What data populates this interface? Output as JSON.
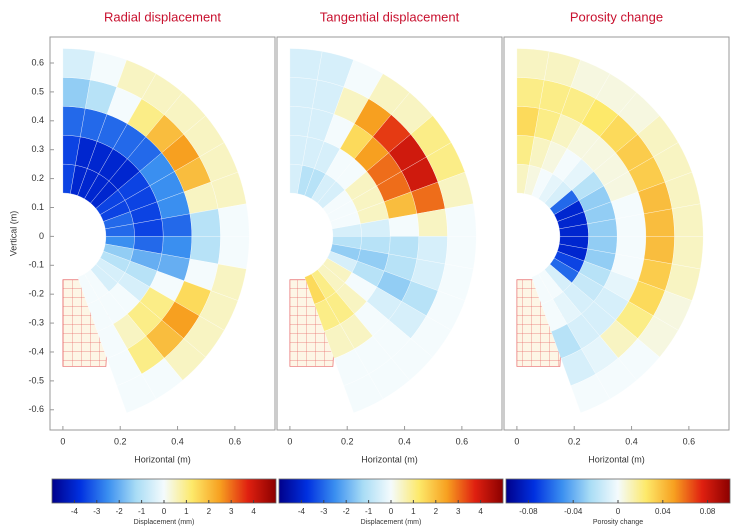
{
  "chart_data": [
    {
      "type": "heatmap",
      "title": "Radial displacement",
      "xlabel": "Horizontal (m)",
      "ylabel": "Vertical (m)",
      "xlim": [
        -0.045,
        0.74
      ],
      "ylim": [
        -0.67,
        0.69
      ],
      "xticks": [
        0,
        0.2,
        0.4,
        0.6
      ],
      "yticks": [
        -0.6,
        -0.5,
        -0.4,
        -0.3,
        -0.2,
        -0.1,
        0,
        0.1,
        0.2,
        0.3,
        0.4,
        0.5,
        0.6
      ],
      "colormap": [
        "#00008b",
        "#0030e0",
        "#3a8ff0",
        "#a8dcf5",
        "#f4fbfd",
        "#fde96a",
        "#f7a020",
        "#e02010",
        "#8b0000"
      ],
      "colorbar": {
        "label": "Displacement (mm)",
        "clim": [
          -5,
          5
        ],
        "ticks": [
          -4,
          -3,
          -2,
          -1,
          0,
          1,
          2,
          3,
          4
        ]
      },
      "values": [
        [
          -3.5,
          -3.5,
          -3,
          -1.5,
          -0.5
        ],
        [
          -4,
          -4,
          -3,
          -1,
          0
        ],
        [
          -4,
          -4,
          -3,
          0,
          0.5
        ],
        [
          -4,
          -4,
          -3,
          1,
          0.5
        ],
        [
          -4,
          -4,
          -3,
          2,
          0.5
        ],
        [
          -3.5,
          -3.5,
          -2.5,
          2.5,
          0.5
        ],
        [
          -3.5,
          -3.5,
          -2.5,
          2,
          0.5
        ],
        [
          -3,
          -3.5,
          -2.5,
          0.5,
          0.5
        ],
        [
          -3,
          -3.5,
          -3,
          -1,
          0
        ],
        [
          -2.5,
          -3,
          -2.5,
          -1,
          0
        ],
        [
          -1.5,
          -2,
          -2,
          0,
          0.5
        ],
        [
          -1,
          -1,
          0,
          1.5,
          0.5
        ],
        [
          -0.5,
          -0.5,
          1,
          2.5,
          0.5
        ],
        [
          -0.5,
          0,
          1,
          2,
          0.5
        ],
        [
          0,
          0,
          0.5,
          1,
          0
        ],
        [
          0,
          0,
          0,
          0,
          0
        ]
      ]
    },
    {
      "type": "heatmap",
      "title": "Tangential displacement",
      "xlabel": "Horizontal (m)",
      "xlim": [
        -0.045,
        0.74
      ],
      "ylim": [
        -0.67,
        0.69
      ],
      "xticks": [
        0,
        0.2,
        0.4,
        0.6
      ],
      "colormap": [
        "#00008b",
        "#0030e0",
        "#3a8ff0",
        "#a8dcf5",
        "#f4fbfd",
        "#fde96a",
        "#f7a020",
        "#e02010",
        "#8b0000"
      ],
      "colorbar": {
        "label": "Displacement (mm)",
        "clim": [
          -5,
          5
        ],
        "ticks": [
          -4,
          -3,
          -2,
          -1,
          0,
          1,
          2,
          3,
          4
        ]
      },
      "values": [
        [
          -0.5,
          -0.5,
          -0.5,
          -0.5,
          -0.5
        ],
        [
          -1,
          -0.5,
          -0.5,
          -0.5,
          -0.5
        ],
        [
          -1,
          -0.5,
          0,
          0.5,
          0
        ],
        [
          -0.5,
          0,
          1.5,
          2.5,
          0.5
        ],
        [
          -0.5,
          0,
          2.5,
          3.5,
          0.5
        ],
        [
          0,
          0.5,
          3,
          4,
          1
        ],
        [
          0,
          0.5,
          3,
          4,
          1
        ],
        [
          0,
          0.5,
          2,
          3,
          0.5
        ],
        [
          -0.5,
          -0.5,
          0,
          0.5,
          0
        ],
        [
          -1,
          -1,
          -1,
          -0.5,
          0
        ],
        [
          -1.5,
          -1.5,
          -1,
          -0.5,
          0
        ],
        [
          -0.5,
          -1,
          -1.5,
          -1,
          0
        ],
        [
          0.5,
          0,
          -0.5,
          -0.5,
          0
        ],
        [
          0.5,
          0.5,
          0,
          0,
          0
        ],
        [
          1,
          1,
          0.5,
          0,
          0
        ],
        [
          1.5,
          1,
          0.5,
          0,
          0
        ]
      ]
    },
    {
      "type": "heatmap",
      "title": "Porosity change",
      "xlabel": "Horizontal (m)",
      "xlim": [
        -0.045,
        0.74
      ],
      "ylim": [
        -0.67,
        0.69
      ],
      "xticks": [
        0,
        0.2,
        0.4,
        0.6
      ],
      "colormap": [
        "#00008b",
        "#0030e0",
        "#3a8ff0",
        "#a8dcf5",
        "#f4fbfd",
        "#fde96a",
        "#f7a020",
        "#e02010",
        "#8b0000"
      ],
      "colorbar": {
        "label": "Porosity change",
        "clim": [
          -0.1,
          0.1
        ],
        "ticks": [
          -0.08,
          -0.04,
          0,
          0.04,
          0.08
        ]
      },
      "values": [
        [
          0.01,
          0.02,
          0.03,
          0.02,
          0.01
        ],
        [
          0.005,
          0.01,
          0.02,
          0.02,
          0.01
        ],
        [
          0,
          0.005,
          0.01,
          0.02,
          0.005
        ],
        [
          -0.005,
          0,
          0.005,
          0.025,
          0.005
        ],
        [
          -0.01,
          -0.005,
          0.005,
          0.03,
          0.005
        ],
        [
          -0.06,
          -0.02,
          0.005,
          0.035,
          0.01
        ],
        [
          -0.08,
          -0.03,
          0.005,
          0.035,
          0.01
        ],
        [
          -0.08,
          -0.03,
          0,
          0.04,
          0.01
        ],
        [
          -0.08,
          -0.03,
          0,
          0.04,
          0.01
        ],
        [
          -0.08,
          -0.03,
          0,
          0.04,
          0.01
        ],
        [
          -0.08,
          -0.03,
          0,
          0.035,
          0.01
        ],
        [
          -0.07,
          -0.02,
          -0.005,
          0.03,
          0.005
        ],
        [
          -0.06,
          -0.015,
          -0.01,
          0.02,
          0.005
        ],
        [
          -0.01,
          -0.01,
          -0.01,
          0.01,
          0
        ],
        [
          0,
          -0.005,
          -0.01,
          -0.005,
          0
        ],
        [
          0,
          0,
          -0.02,
          -0.01,
          0
        ]
      ]
    }
  ]
}
